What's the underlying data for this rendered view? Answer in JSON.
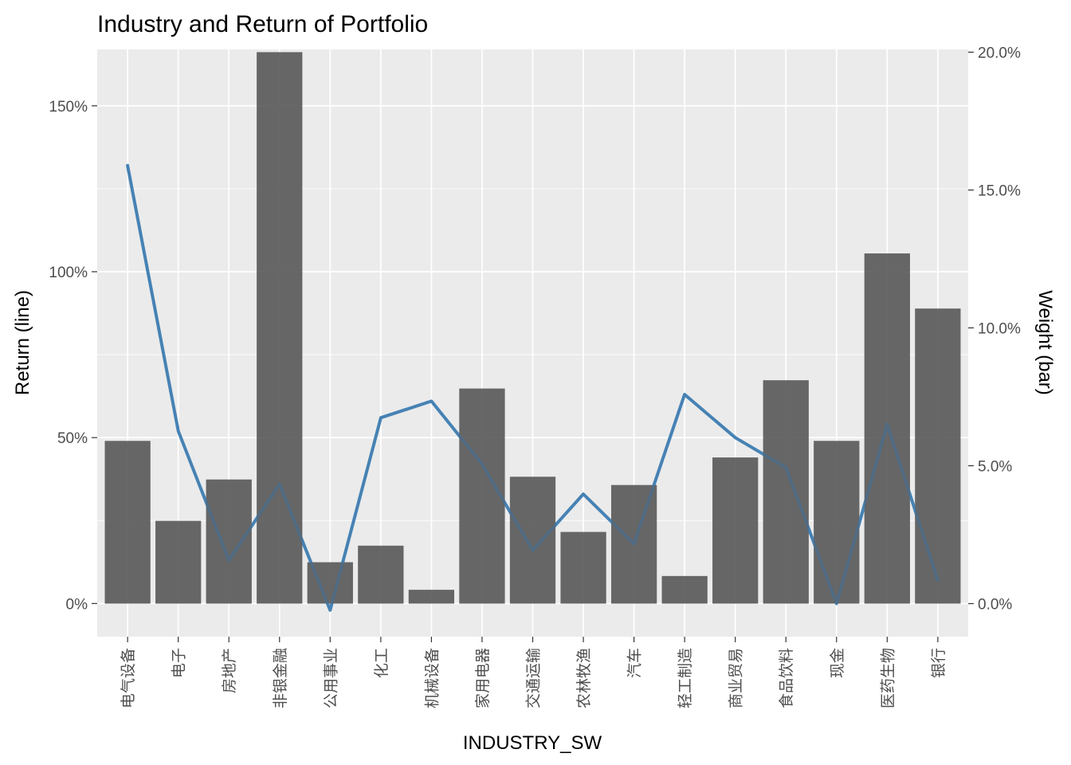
{
  "chart_data": {
    "type": "bar+line",
    "title": "Industry and Return of Portfolio",
    "xlabel": "INDUSTRY_SW",
    "ylabel_left": "Return (line)",
    "ylabel_right": "Weight (bar)",
    "categories": [
      "电气设备",
      "电子",
      "房地产",
      "非银金融",
      "公用事业",
      "化工",
      "机械设备",
      "家用电器",
      "交通运输",
      "农林牧渔",
      "汽车",
      "轻工制造",
      "商业贸易",
      "食品饮料",
      "现金",
      "医药生物",
      "银行"
    ],
    "series": [
      {
        "kind": "bar",
        "axis": "right",
        "values": [
          5.9,
          3.0,
          4.5,
          20.0,
          1.5,
          2.1,
          0.5,
          7.8,
          4.6,
          2.6,
          4.3,
          1.0,
          5.3,
          8.1,
          5.9,
          12.7,
          10.7
        ]
      },
      {
        "kind": "line",
        "axis": "left",
        "values": [
          132,
          52,
          13,
          36,
          -2,
          56,
          61,
          42,
          16,
          33,
          18,
          63,
          50,
          41,
          0,
          54,
          7
        ]
      }
    ],
    "left_axis": {
      "ylim": [
        -10,
        167
      ],
      "ticks": [
        0,
        50,
        100,
        150
      ],
      "tick_labels": [
        "0%",
        "50%",
        "100%",
        "150%"
      ]
    },
    "right_axis": {
      "ylim": [
        -1.2,
        20.1
      ],
      "ticks": [
        0,
        5,
        10,
        15,
        20
      ],
      "tick_labels": [
        "0.0%",
        "5.0%",
        "10.0%",
        "15.0%",
        "20.0%"
      ]
    },
    "grid": true,
    "colors": {
      "panel": "#ebebeb",
      "grid": "#ffffff",
      "bar": "#595959",
      "line": "#4682b4"
    }
  }
}
